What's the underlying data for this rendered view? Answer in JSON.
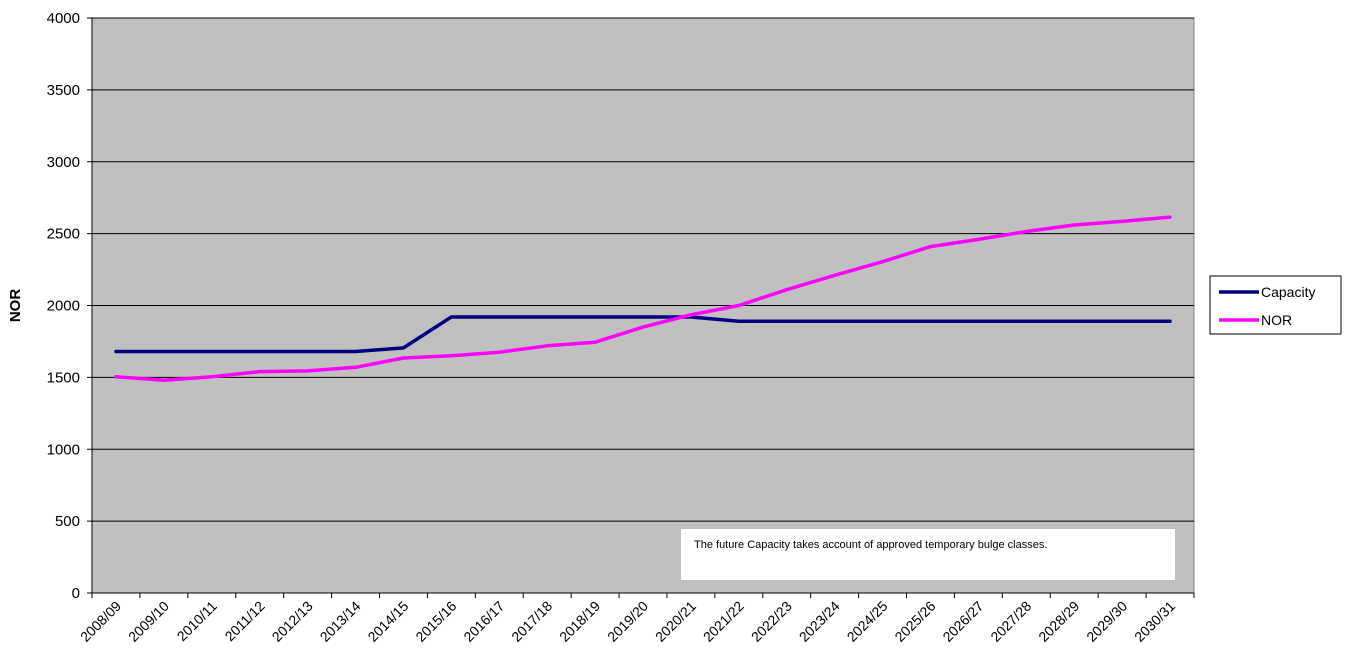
{
  "chart_data": {
    "type": "line",
    "title": "",
    "xlabel": "",
    "ylabel": "NOR",
    "ylim": [
      0,
      4000
    ],
    "yticks": [
      0,
      500,
      1000,
      1500,
      2000,
      2500,
      3000,
      3500,
      4000
    ],
    "grid": true,
    "legend_position": "right",
    "colors": {
      "plot_bg": "#c0c0c0",
      "gridline": "#000000"
    },
    "categories": [
      "2008/09",
      "2009/10",
      "2010/11",
      "2011/12",
      "2012/13",
      "2013/14",
      "2014/15",
      "2015/16",
      "2016/17",
      "2017/18",
      "2018/19",
      "2019/20",
      "2020/21",
      "2021/22",
      "2022/23",
      "2023/24",
      "2024/25",
      "2025/26",
      "2026/27",
      "2027/28",
      "2028/29",
      "2029/30",
      "2030/31"
    ],
    "series": [
      {
        "name": "Capacity",
        "color": "#000080",
        "values": [
          1680,
          1680,
          1680,
          1680,
          1680,
          1680,
          1705,
          1920,
          1920,
          1920,
          1920,
          1920,
          1920,
          1890,
          1890,
          1890,
          1890,
          1890,
          1890,
          1890,
          1890,
          1890,
          1890
        ]
      },
      {
        "name": "NOR",
        "color": "#ff00ff",
        "values": [
          1505,
          1480,
          1505,
          1540,
          1545,
          1570,
          1635,
          1650,
          1675,
          1720,
          1745,
          1850,
          1935,
          2000,
          2110,
          2210,
          2305,
          2410,
          2460,
          2515,
          2560,
          2585,
          2615
        ]
      }
    ],
    "annotation": "The future Capacity takes account of approved temporary bulge classes."
  }
}
